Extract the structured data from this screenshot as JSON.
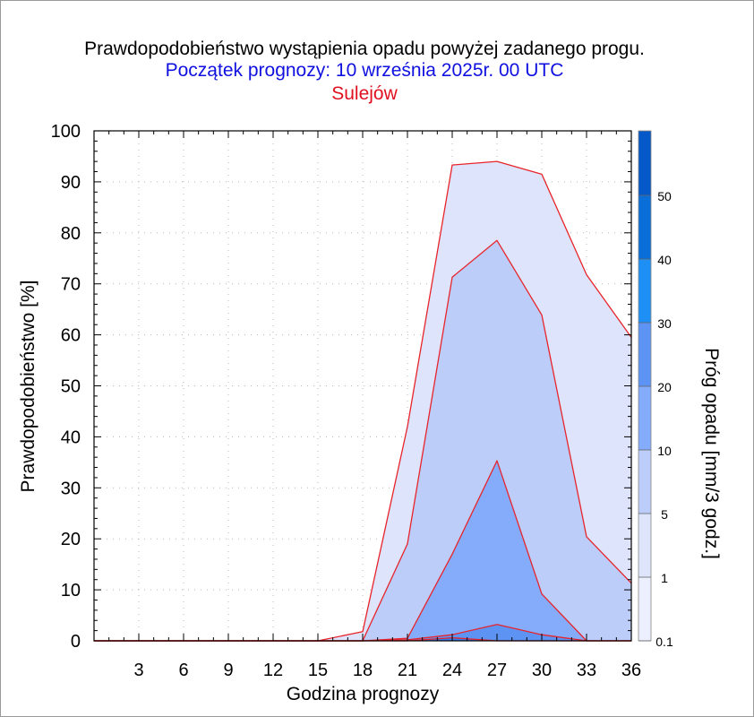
{
  "chart_data": {
    "type": "area",
    "title": "Prawdopodobieństwo wystąpienia opadu powyżej zadanego progu.",
    "subtitle": "Początek prognozy: 10 września 2025r. 00 UTC",
    "location": "Sulejów",
    "xlabel": "Godzina prognozy",
    "ylabel": "Prawdopodobieństwo [%]",
    "xlim": [
      0,
      36
    ],
    "ylim": [
      0,
      100
    ],
    "xticks": [
      3,
      6,
      9,
      12,
      15,
      18,
      21,
      24,
      27,
      30,
      33,
      36
    ],
    "yticks": [
      0,
      10,
      20,
      30,
      40,
      50,
      60,
      70,
      80,
      90,
      100
    ],
    "grid": true,
    "x": [
      0,
      3,
      6,
      9,
      12,
      15,
      18,
      21,
      24,
      27,
      30,
      33,
      36
    ],
    "series": [
      {
        "threshold": 0.1,
        "color": "#dde4fc",
        "values": [
          0,
          0,
          0,
          0,
          0,
          0,
          1.8,
          42,
          93.3,
          94,
          91.5,
          71.8,
          59.5
        ]
      },
      {
        "threshold": 1,
        "color": "#bccdfa",
        "values": [
          0,
          0,
          0,
          0,
          0,
          0,
          0,
          19,
          71.3,
          78.5,
          63.9,
          20.4,
          11.3
        ]
      },
      {
        "threshold": 5,
        "color": "#84acfb",
        "values": [
          0,
          0,
          0,
          0,
          0,
          0,
          0,
          0.5,
          17,
          35.3,
          9.2,
          0,
          0
        ]
      },
      {
        "threshold": 10,
        "color": "#5d93f2",
        "values": [
          0,
          0,
          0,
          0,
          0,
          0,
          0,
          0.2,
          1.2,
          3.2,
          1.2,
          0,
          0
        ]
      },
      {
        "threshold": 20,
        "color": "#2f7ef0",
        "values": [
          0,
          0,
          0,
          0,
          0,
          0,
          0,
          0,
          0.6,
          0,
          0,
          0,
          0
        ]
      }
    ],
    "colorbar": {
      "label": "Próg opadu [mm/3 godz.]",
      "labels": [
        "0.1",
        "1",
        "5",
        "10",
        "20",
        "30",
        "40",
        "50"
      ],
      "colors": [
        "#eceffe",
        "#dde4fc",
        "#bccdfa",
        "#84acfb",
        "#5d93f2",
        "#1e8ff5",
        "#0a6ed8",
        "#0558c8",
        "#0440aa"
      ]
    }
  }
}
